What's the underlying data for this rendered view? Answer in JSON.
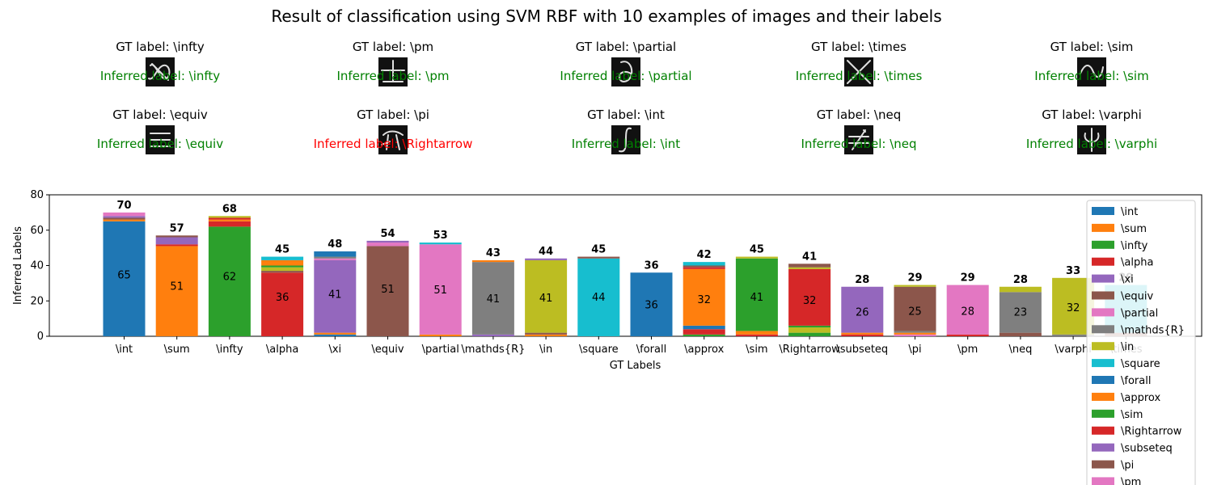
{
  "figure": {
    "title": "Result of classification using SVM RBF with 10 examples of images and their labels"
  },
  "examples": [
    {
      "gt": "GT label: \\infty",
      "inferred": "Inferred label: \\infty",
      "correct": true,
      "glyph": "infty"
    },
    {
      "gt": "GT label: \\pm",
      "inferred": "Inferred label: \\pm",
      "correct": true,
      "glyph": "pm"
    },
    {
      "gt": "GT label: \\partial",
      "inferred": "Inferred label: \\partial",
      "correct": true,
      "glyph": "partial"
    },
    {
      "gt": "GT label: \\times",
      "inferred": "Inferred label: \\times",
      "correct": true,
      "glyph": "times"
    },
    {
      "gt": "GT label: \\sim",
      "inferred": "Inferred label: \\sim",
      "correct": true,
      "glyph": "sim"
    },
    {
      "gt": "GT label: \\equiv",
      "inferred": "Inferred label: \\equiv",
      "correct": true,
      "glyph": "equiv"
    },
    {
      "gt": "GT label: \\pi",
      "inferred": "Inferred label: \\Rightarrow",
      "correct": false,
      "glyph": "pi"
    },
    {
      "gt": "GT label: \\int",
      "inferred": "Inferred label: \\int",
      "correct": true,
      "glyph": "int"
    },
    {
      "gt": "GT label: \\neq",
      "inferred": "Inferred label: \\neq",
      "correct": true,
      "glyph": "neq"
    },
    {
      "gt": "GT label: \\varphi",
      "inferred": "Inferred label: \\varphi",
      "correct": true,
      "glyph": "varphi"
    }
  ],
  "colors": {
    "correct_text": "#008000",
    "wrong_text": "#ff0000",
    "thumb_bg": "#111111",
    "thumb_stroke": "#e0e0e0"
  },
  "chart_data": {
    "type": "bar",
    "stacked": true,
    "xlabel": "GT Labels",
    "ylabel": "Inferred Labels",
    "ylim": [
      0,
      80
    ],
    "yticks": [
      0,
      20,
      40,
      60,
      80
    ],
    "grid": false,
    "legend_placement": "right",
    "categories": [
      "\\int",
      "\\sum",
      "\\infty",
      "\\alpha",
      "\\xi",
      "\\equiv",
      "\\partial",
      "\\mathds{R}",
      "\\in",
      "\\square",
      "\\forall",
      "\\approx",
      "\\sim",
      "\\Rightarrow",
      "\\subseteq",
      "\\pi",
      "\\pm",
      "\\neq",
      "\\varphi",
      "\\times"
    ],
    "totals": [
      70,
      57,
      68,
      45,
      48,
      54,
      53,
      43,
      44,
      45,
      36,
      42,
      45,
      41,
      28,
      29,
      29,
      28,
      33,
      29
    ],
    "main_values": [
      65,
      51,
      62,
      36,
      41,
      51,
      51,
      41,
      41,
      44,
      36,
      32,
      41,
      32,
      26,
      25,
      28,
      23,
      32,
      null
    ],
    "legend": [
      {
        "name": "\\int",
        "color": "#1f77b4"
      },
      {
        "name": "\\sum",
        "color": "#ff7f0e"
      },
      {
        "name": "\\infty",
        "color": "#2ca02c"
      },
      {
        "name": "\\alpha",
        "color": "#d62728"
      },
      {
        "name": "\\xi",
        "color": "#9467bd"
      },
      {
        "name": "\\equiv",
        "color": "#8c564b"
      },
      {
        "name": "\\partial",
        "color": "#e377c2"
      },
      {
        "name": "\\mathds{R}",
        "color": "#7f7f7f"
      },
      {
        "name": "\\in",
        "color": "#bcbd22"
      },
      {
        "name": "\\square",
        "color": "#17becf"
      },
      {
        "name": "\\forall",
        "color": "#1f77b4"
      },
      {
        "name": "\\approx",
        "color": "#ff7f0e"
      },
      {
        "name": "\\sim",
        "color": "#2ca02c"
      },
      {
        "name": "\\Rightarrow",
        "color": "#d62728"
      },
      {
        "name": "\\subseteq",
        "color": "#9467bd"
      },
      {
        "name": "\\pi",
        "color": "#8c564b"
      },
      {
        "name": "\\pm",
        "color": "#e377c2"
      }
    ],
    "bars": [
      {
        "segments": [
          {
            "v": 65,
            "c": "#1f77b4"
          },
          {
            "v": 1,
            "c": "#ff7f0e"
          },
          {
            "v": 1,
            "c": "#8c564b"
          },
          {
            "v": 1,
            "c": "#9467bd"
          },
          {
            "v": 2,
            "c": "#e377c2"
          }
        ]
      },
      {
        "segments": [
          {
            "v": 51,
            "c": "#ff7f0e"
          },
          {
            "v": 1,
            "c": "#d62728"
          },
          {
            "v": 4,
            "c": "#9467bd"
          },
          {
            "v": 1,
            "c": "#8c564b"
          }
        ]
      },
      {
        "segments": [
          {
            "v": 62,
            "c": "#2ca02c"
          },
          {
            "v": 3,
            "c": "#d62728"
          },
          {
            "v": 1,
            "c": "#ff7f0e"
          },
          {
            "v": 1,
            "c": "#d62728"
          },
          {
            "v": 1,
            "c": "#bcbd22"
          }
        ]
      },
      {
        "segments": [
          {
            "v": 36,
            "c": "#d62728"
          },
          {
            "v": 1,
            "c": "#8c564b"
          },
          {
            "v": 2,
            "c": "#bcbd22"
          },
          {
            "v": 1,
            "c": "#2ca02c"
          },
          {
            "v": 3,
            "c": "#ff7f0e"
          },
          {
            "v": 2,
            "c": "#17becf"
          }
        ]
      },
      {
        "segments": [
          {
            "v": 1,
            "c": "#1f77b4"
          },
          {
            "v": 1,
            "c": "#ff7f0e"
          },
          {
            "v": 41,
            "c": "#9467bd"
          },
          {
            "v": 1,
            "c": "#e377c2"
          },
          {
            "v": 1,
            "c": "#7f7f7f"
          },
          {
            "v": 3,
            "c": "#1f77b4"
          }
        ]
      },
      {
        "segments": [
          {
            "v": 51,
            "c": "#8c564b"
          },
          {
            "v": 2,
            "c": "#e377c2"
          },
          {
            "v": 1,
            "c": "#9467bd"
          }
        ]
      },
      {
        "segments": [
          {
            "v": 1,
            "c": "#ff7f0e"
          },
          {
            "v": 51,
            "c": "#e377c2"
          },
          {
            "v": 1,
            "c": "#17becf"
          }
        ]
      },
      {
        "segments": [
          {
            "v": 1,
            "c": "#9467bd"
          },
          {
            "v": 41,
            "c": "#7f7f7f"
          },
          {
            "v": 1,
            "c": "#ff7f0e"
          }
        ]
      },
      {
        "segments": [
          {
            "v": 1,
            "c": "#ff7f0e"
          },
          {
            "v": 1,
            "c": "#8c564b"
          },
          {
            "v": 41,
            "c": "#bcbd22"
          },
          {
            "v": 1,
            "c": "#9467bd"
          }
        ]
      },
      {
        "segments": [
          {
            "v": 44,
            "c": "#17becf"
          },
          {
            "v": 1,
            "c": "#8c564b"
          }
        ]
      },
      {
        "segments": [
          {
            "v": 36,
            "c": "#1f77b4"
          }
        ]
      },
      {
        "segments": [
          {
            "v": 1,
            "c": "#2ca02c"
          },
          {
            "v": 3,
            "c": "#d62728"
          },
          {
            "v": 2,
            "c": "#1f77b4"
          },
          {
            "v": 32,
            "c": "#ff7f0e"
          },
          {
            "v": 1,
            "c": "#d62728"
          },
          {
            "v": 1,
            "c": "#8c564b"
          },
          {
            "v": 2,
            "c": "#17becf"
          }
        ]
      },
      {
        "segments": [
          {
            "v": 1,
            "c": "#d62728"
          },
          {
            "v": 2,
            "c": "#ff7f0e"
          },
          {
            "v": 41,
            "c": "#2ca02c"
          },
          {
            "v": 1,
            "c": "#bcbd22"
          }
        ]
      },
      {
        "segments": [
          {
            "v": 2,
            "c": "#2ca02c"
          },
          {
            "v": 3,
            "c": "#bcbd22"
          },
          {
            "v": 1,
            "c": "#2ca02c"
          },
          {
            "v": 32,
            "c": "#d62728"
          },
          {
            "v": 1,
            "c": "#bcbd22"
          },
          {
            "v": 2,
            "c": "#8c564b"
          }
        ]
      },
      {
        "segments": [
          {
            "v": 1,
            "c": "#d62728"
          },
          {
            "v": 1,
            "c": "#ff7f0e"
          },
          {
            "v": 26,
            "c": "#9467bd"
          }
        ]
      },
      {
        "segments": [
          {
            "v": 1,
            "c": "#e377c2"
          },
          {
            "v": 1,
            "c": "#ff7f0e"
          },
          {
            "v": 1,
            "c": "#7f7f7f"
          },
          {
            "v": 25,
            "c": "#8c564b"
          },
          {
            "v": 1,
            "c": "#bcbd22"
          }
        ]
      },
      {
        "segments": [
          {
            "v": 1,
            "c": "#d62728"
          },
          {
            "v": 28,
            "c": "#e377c2"
          }
        ]
      },
      {
        "segments": [
          {
            "v": 2,
            "c": "#8c564b"
          },
          {
            "v": 23,
            "c": "#7f7f7f"
          },
          {
            "v": 3,
            "c": "#bcbd22"
          }
        ]
      },
      {
        "segments": [
          {
            "v": 1,
            "c": "#7f7f7f"
          },
          {
            "v": 32,
            "c": "#bcbd22"
          }
        ]
      },
      {
        "segments": [
          {
            "v": 2,
            "c": "#8c564b"
          },
          {
            "v": 27,
            "c": "#17becf"
          }
        ]
      }
    ]
  }
}
